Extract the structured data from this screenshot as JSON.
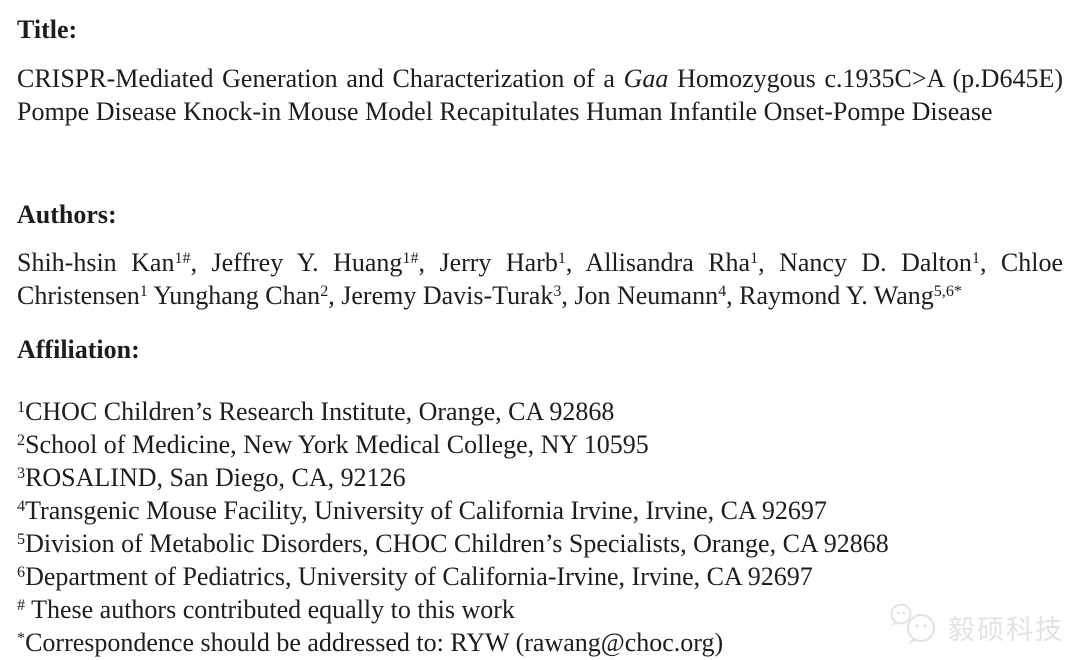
{
  "page": {
    "background": "#ffffff",
    "text_color": "#1d1d1d",
    "headings": {
      "title": "Title:",
      "authors": "Authors:",
      "affiliation": "Affiliation:"
    },
    "title": {
      "line1": [
        {
          "t": "CRISPR-Mediated Generation and Characterization of a "
        },
        {
          "t": "Gaa",
          "s": "i"
        },
        {
          "t": " Homozygous c.1935C>A (p.D645E)"
        }
      ],
      "line2": [
        {
          "t": "Pompe Disease Knock-in Mouse Model Recapitulates Human Infantile Onset-Pompe Disease"
        }
      ]
    },
    "authors": {
      "line1": [
        {
          "t": "Shih-hsin Kan"
        },
        {
          "t": "1#",
          "s": "sup"
        },
        {
          "t": ", Jeffrey Y. Huang"
        },
        {
          "t": "1#",
          "s": "sup"
        },
        {
          "t": ", Jerry Harb"
        },
        {
          "t": "1",
          "s": "sup"
        },
        {
          "t": ", Allisandra Rha"
        },
        {
          "t": "1",
          "s": "sup"
        },
        {
          "t": ", Nancy D. Dalton"
        },
        {
          "t": "1",
          "s": "sup"
        },
        {
          "t": ", Chloe"
        }
      ],
      "line2": [
        {
          "t": "Christensen"
        },
        {
          "t": "1",
          "s": "sup"
        },
        {
          "t": " Yunghang Chan"
        },
        {
          "t": "2",
          "s": "sup"
        },
        {
          "t": ", Jeremy Davis-Turak"
        },
        {
          "t": "3",
          "s": "sup"
        },
        {
          "t": ", Jon Neumann"
        },
        {
          "t": "4",
          "s": "sup"
        },
        {
          "t": ", Raymond Y. Wang"
        },
        {
          "t": "5,6*",
          "s": "sup"
        }
      ]
    },
    "affiliations": [
      [
        {
          "t": "1",
          "s": "sup"
        },
        {
          "t": "CHOC Children’s Research Institute, Orange, CA 92868"
        }
      ],
      [
        {
          "t": "2",
          "s": "sup"
        },
        {
          "t": "School of Medicine, New York Medical College, NY 10595"
        }
      ],
      [
        {
          "t": "3",
          "s": "sup"
        },
        {
          "t": "ROSALIND, San Diego, CA, 92126"
        }
      ],
      [
        {
          "t": "4",
          "s": "sup"
        },
        {
          "t": "Transgenic Mouse Facility, University of California Irvine, Irvine, CA 92697"
        }
      ],
      [
        {
          "t": "5",
          "s": "sup"
        },
        {
          "t": "Division of Metabolic Disorders, CHOC Children’s Specialists, Orange, CA 92868"
        }
      ],
      [
        {
          "t": "6",
          "s": "sup"
        },
        {
          "t": "Department of Pediatrics, University of California-Irvine, Irvine, CA 92697"
        }
      ]
    ],
    "footnotes": {
      "equal_contribution": [
        {
          "t": "#",
          "s": "sup"
        },
        {
          "t": " These authors contributed equally to this work"
        }
      ],
      "correspondence": [
        {
          "t": "*",
          "s": "sup"
        },
        {
          "t": "Correspondence should be addressed to: RYW (rawang@choc.org)"
        }
      ]
    },
    "watermark": {
      "brand": "毅硕科技",
      "logo_icon": "wechat-bubbles-icon",
      "color": "#e2e2e2"
    }
  }
}
